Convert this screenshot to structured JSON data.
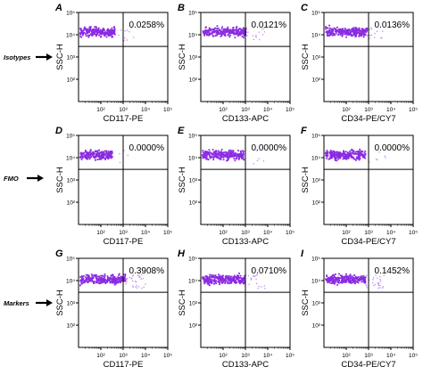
{
  "row_labels": [
    "Isotypes",
    "FMO",
    "Markers"
  ],
  "colors": {
    "events": "#8a2be2",
    "events_light": "#c08cf0",
    "axes": "#000000"
  },
  "chart_data": [
    {
      "type": "scatter",
      "letter": "A",
      "row": 0,
      "col": 0,
      "xlabel": "CD117-PE",
      "ylabel": "SSC-H",
      "percent": "0.0258%",
      "x_scale": "log",
      "y_scale": "log",
      "xlim": [
        10,
        100000
      ],
      "ylim": [
        10,
        100000
      ],
      "x_ticks": [
        "10²",
        "10³",
        "10⁴",
        "10⁵"
      ],
      "y_ticks": [
        "10⁵",
        "10⁴",
        "10³",
        "10²"
      ],
      "quadrant_gate": {
        "x": 1000,
        "y": 3000
      },
      "population": {
        "x_range": [
          10,
          400
        ],
        "y_range": [
          7000,
          30000
        ],
        "events": 240,
        "sparse": 10
      }
    },
    {
      "type": "scatter",
      "letter": "B",
      "row": 0,
      "col": 1,
      "xlabel": "CD133-APC",
      "ylabel": "SSC-H",
      "percent": "0.0121%",
      "x_scale": "log",
      "y_scale": "log",
      "xlim": [
        10,
        100000
      ],
      "ylim": [
        10,
        100000
      ],
      "x_ticks": [
        "10²",
        "10³",
        "10⁴",
        "10⁵"
      ],
      "y_ticks": [
        "10⁵",
        "10⁴",
        "10³",
        "10²"
      ],
      "quadrant_gate": {
        "x": 1000,
        "y": 3000
      },
      "population": {
        "x_range": [
          10,
          1000
        ],
        "y_range": [
          7000,
          30000
        ],
        "events": 260,
        "sparse": 14
      }
    },
    {
      "type": "scatter",
      "letter": "C",
      "row": 0,
      "col": 2,
      "xlabel": "CD34-PE/CY7",
      "ylabel": "SSC-H",
      "percent": "0.0136%",
      "x_scale": "log",
      "y_scale": "log",
      "xlim": [
        10,
        100000
      ],
      "ylim": [
        10,
        100000
      ],
      "x_ticks": [
        "10²",
        "10³",
        "10⁴",
        "10⁵"
      ],
      "y_ticks": [
        "10⁵",
        "10⁴",
        "10³",
        "10²"
      ],
      "quadrant_gate": {
        "x": 1000,
        "y": 3000
      },
      "population": {
        "x_range": [
          10,
          800
        ],
        "y_range": [
          7000,
          30000
        ],
        "events": 250,
        "sparse": 16
      }
    },
    {
      "type": "scatter",
      "letter": "D",
      "row": 1,
      "col": 0,
      "xlabel": "CD117-PE",
      "ylabel": "SSC-H",
      "percent": "0.0000%",
      "x_scale": "log",
      "y_scale": "log",
      "xlim": [
        10,
        100000
      ],
      "ylim": [
        10,
        100000
      ],
      "x_ticks": [
        "10²",
        "10³",
        "10⁴",
        "10⁵"
      ],
      "y_ticks": [
        "10⁵",
        "10⁴",
        "10³",
        "10²"
      ],
      "quadrant_gate": {
        "x": 1000,
        "y": 3000
      },
      "population": {
        "x_range": [
          10,
          300
        ],
        "y_range": [
          7000,
          30000
        ],
        "events": 220,
        "sparse": 4
      }
    },
    {
      "type": "scatter",
      "letter": "E",
      "row": 1,
      "col": 1,
      "xlabel": "CD133-APC",
      "ylabel": "SSC-H",
      "percent": "0.0000%",
      "x_scale": "log",
      "y_scale": "log",
      "xlim": [
        10,
        100000
      ],
      "ylim": [
        10,
        100000
      ],
      "x_ticks": [
        "10²",
        "10³",
        "10⁴",
        "10⁵"
      ],
      "y_ticks": [
        "10⁵",
        "10⁴",
        "10³",
        "10²"
      ],
      "quadrant_gate": {
        "x": 1000,
        "y": 3000
      },
      "population": {
        "x_range": [
          10,
          800
        ],
        "y_range": [
          7000,
          30000
        ],
        "events": 260,
        "sparse": 6
      }
    },
    {
      "type": "scatter",
      "letter": "F",
      "row": 1,
      "col": 2,
      "xlabel": "CD34-PE/CY7",
      "ylabel": "SSC-H",
      "percent": "0.0000%",
      "x_scale": "log",
      "y_scale": "log",
      "xlim": [
        10,
        100000
      ],
      "ylim": [
        10,
        100000
      ],
      "x_ticks": [
        "10²",
        "10³",
        "10⁴",
        "10⁵"
      ],
      "y_ticks": [
        "10⁵",
        "10⁴",
        "10³",
        "10²"
      ],
      "quadrant_gate": {
        "x": 1000,
        "y": 3000
      },
      "population": {
        "x_range": [
          10,
          700
        ],
        "y_range": [
          7000,
          30000
        ],
        "events": 250,
        "sparse": 6
      }
    },
    {
      "type": "scatter",
      "letter": "G",
      "row": 2,
      "col": 0,
      "xlabel": "CD117-PE",
      "ylabel": "SSC-H",
      "percent": "0.3908%",
      "x_scale": "log",
      "y_scale": "log",
      "xlim": [
        10,
        100000
      ],
      "ylim": [
        10,
        100000
      ],
      "x_ticks": [
        "10²",
        "10³",
        "10⁴",
        "10⁵"
      ],
      "y_ticks": [
        "10⁵",
        "10⁴",
        "10³",
        "10²"
      ],
      "quadrant_gate": {
        "x": 1000,
        "y": 3000
      },
      "population": {
        "x_range": [
          10,
          1200
        ],
        "y_range": [
          6000,
          25000
        ],
        "events": 280,
        "sparse": 30
      }
    },
    {
      "type": "scatter",
      "letter": "H",
      "row": 2,
      "col": 1,
      "xlabel": "CD133-APC",
      "ylabel": "SSC-H",
      "percent": "0.0710%",
      "x_scale": "log",
      "y_scale": "log",
      "xlim": [
        10,
        100000
      ],
      "ylim": [
        10,
        100000
      ],
      "x_ticks": [
        "10²",
        "10³",
        "10⁴",
        "10⁵"
      ],
      "y_ticks": [
        "10⁵",
        "10⁴",
        "10³",
        "10²"
      ],
      "quadrant_gate": {
        "x": 1000,
        "y": 3000
      },
      "population": {
        "x_range": [
          10,
          900
        ],
        "y_range": [
          6000,
          25000
        ],
        "events": 270,
        "sparse": 20
      }
    },
    {
      "type": "scatter",
      "letter": "I",
      "row": 2,
      "col": 2,
      "xlabel": "CD34-PE/CY7",
      "ylabel": "SSC-H",
      "percent": "0.1452%",
      "x_scale": "log",
      "y_scale": "log",
      "xlim": [
        10,
        100000
      ],
      "ylim": [
        10,
        100000
      ],
      "x_ticks": [
        "10²",
        "10³",
        "10⁴",
        "10⁵"
      ],
      "y_ticks": [
        "10⁵",
        "10⁴",
        "10³",
        "10²"
      ],
      "quadrant_gate": {
        "x": 1000,
        "y": 3000
      },
      "population": {
        "x_range": [
          10,
          700
        ],
        "y_range": [
          6000,
          25000
        ],
        "events": 260,
        "sparse": 26
      }
    }
  ]
}
